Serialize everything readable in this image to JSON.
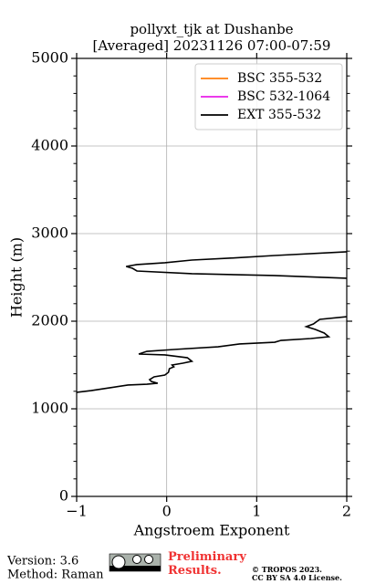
{
  "chart_data": {
    "type": "line",
    "title": "pollyxt_tjk at Dushanbe",
    "subtitle": "[Averaged] 20231126 07:00-07:59",
    "x_label": "Angstroem Exponent",
    "y_label": "Height (m)",
    "xlim": [
      -1,
      2
    ],
    "xticks": [
      {
        "value": -1,
        "label": "−1"
      },
      0,
      1,
      2
    ],
    "ylim": [
      0,
      5000
    ],
    "yticks": [
      0,
      1000,
      2000,
      3000,
      4000,
      5000
    ],
    "grid": true,
    "legend": "upper right",
    "series": [
      {
        "name": "BSC 355-532",
        "color": "#ff7f0e",
        "x": [],
        "values": []
      },
      {
        "name": "BSC 532-1064",
        "color": "#e81ee8",
        "x": [],
        "values": []
      },
      {
        "name": "EXT 355-532",
        "color": "#000000",
        "x": [
          -1.0,
          -0.84,
          -0.63,
          -0.43,
          -0.22,
          -0.1,
          -0.17,
          -0.19,
          -0.14,
          -0.02,
          0.02,
          0.03,
          0.08,
          0.06,
          0.18,
          0.28,
          0.23,
          -0.02,
          -0.31,
          -0.22,
          0.08,
          0.57,
          0.81,
          1.2,
          1.27,
          1.6,
          1.8,
          1.75,
          1.65,
          1.55,
          1.63,
          1.7,
          2.0,
          null,
          2.0,
          1.19,
          0.28,
          -0.33,
          -0.38,
          -0.45,
          -0.33,
          -0.02,
          0.28,
          0.69,
          1.2,
          2.0
        ],
        "values": [
          1188,
          1208,
          1240,
          1271,
          1281,
          1292,
          1312,
          1333,
          1365,
          1385,
          1417,
          1458,
          1479,
          1500,
          1521,
          1542,
          1583,
          1615,
          1625,
          1656,
          1677,
          1708,
          1740,
          1760,
          1781,
          1802,
          1823,
          1865,
          1906,
          1938,
          1969,
          2021,
          2052,
          null,
          2490,
          2521,
          2542,
          2573,
          2604,
          2625,
          2646,
          2667,
          2698,
          2719,
          2750,
          2792
        ]
      }
    ]
  },
  "footer": {
    "version": "Version: 3.6",
    "method": "Method: Raman",
    "status": "Preliminary Results.",
    "copyright": "© TROPOS 2023.",
    "license": "CC BY SA 4.0 License."
  }
}
